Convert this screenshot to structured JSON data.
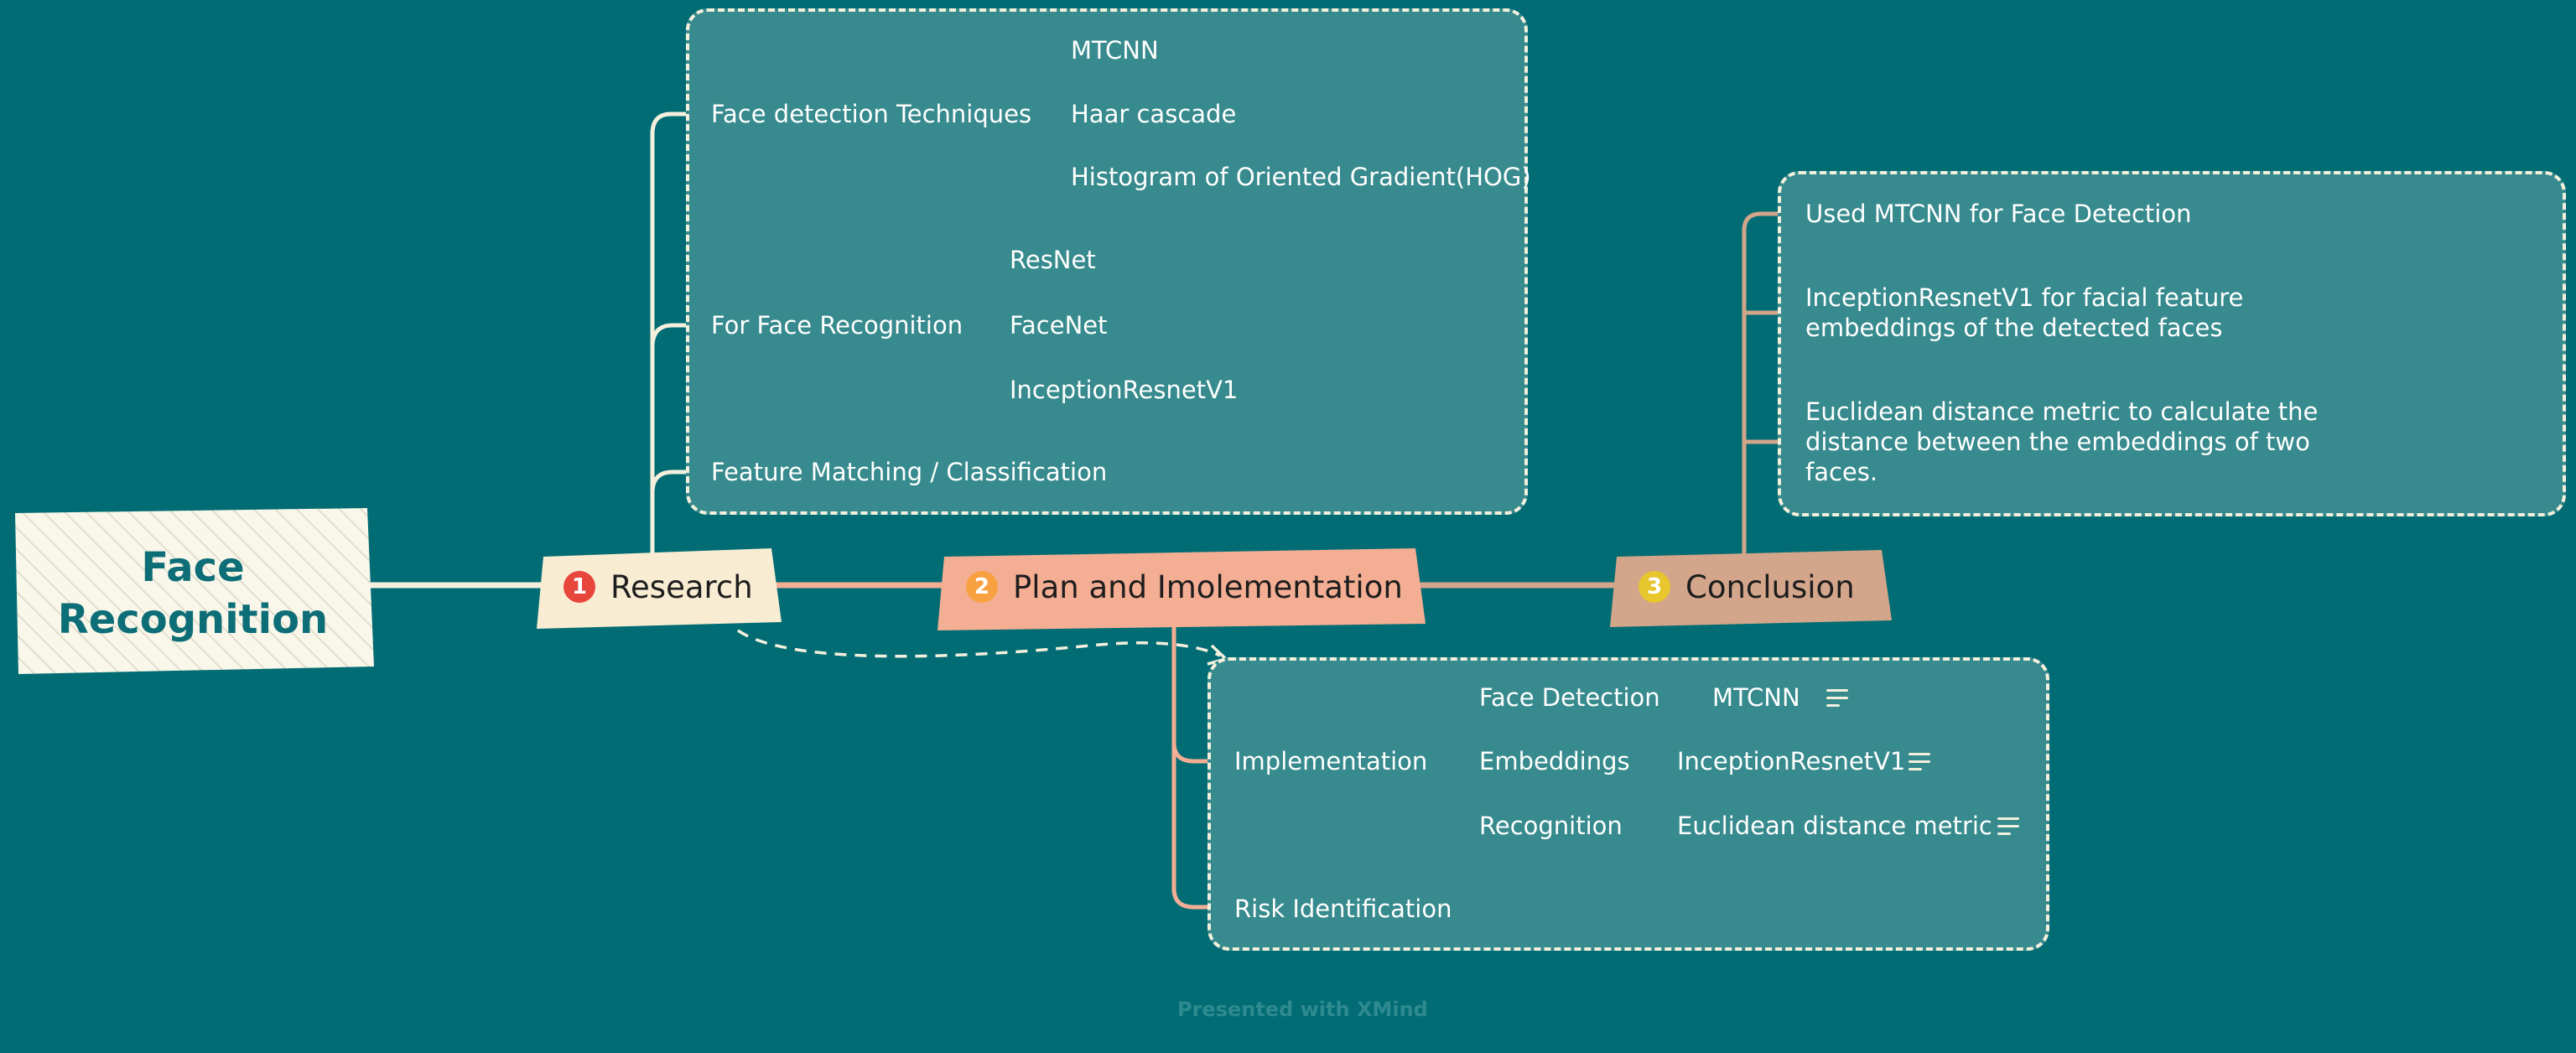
{
  "root": {
    "label": "Face Recognition"
  },
  "topics": [
    {
      "id": "research",
      "badge": "1",
      "label": "Research",
      "color": "#f8ecd3",
      "badge_color": "#e8453c"
    },
    {
      "id": "plan",
      "badge": "2",
      "label": "Plan and Imolementation",
      "color": "#f4ae93",
      "badge_color": "#f7a140"
    },
    {
      "id": "conclusion",
      "badge": "3",
      "label": "Conclusion",
      "color": "#d3a58a",
      "badge_color": "#e7c62e"
    }
  ],
  "research": {
    "face_detection": {
      "label": "Face detection Techniques",
      "children": [
        "MTCNN",
        "Haar cascade",
        "Histogram of Oriented Gradient(HOG)"
      ]
    },
    "face_recognition": {
      "label": "For Face Recognition",
      "children": [
        "ResNet",
        "FaceNet",
        "InceptionResnetV1"
      ]
    },
    "feature_matching": {
      "label": "Feature Matching / Classification"
    }
  },
  "plan": {
    "implementation": {
      "label": "Implementation",
      "children": [
        {
          "label": "Face Detection",
          "value": "MTCNN"
        },
        {
          "label": "Embeddings",
          "value": "InceptionResnetV1"
        },
        {
          "label": "Recognition",
          "value": "Euclidean distance metric"
        }
      ]
    },
    "risk": {
      "label": "Risk Identification"
    }
  },
  "conclusion": {
    "items": [
      "Used MTCNN for Face Detection",
      [
        "InceptionResnetV1 for facial feature",
        "embeddings of the detected faces"
      ],
      [
        "Euclidean distance metric to calculate the",
        "distance between the embeddings of two",
        "faces."
      ]
    ]
  },
  "footer": "Presented with XMind",
  "colors": {
    "background": "#016c73",
    "box": "#378a8d",
    "line": "#f4f0de",
    "plan_line": "#f4ae93",
    "conclusion_line": "#d3a58a"
  }
}
